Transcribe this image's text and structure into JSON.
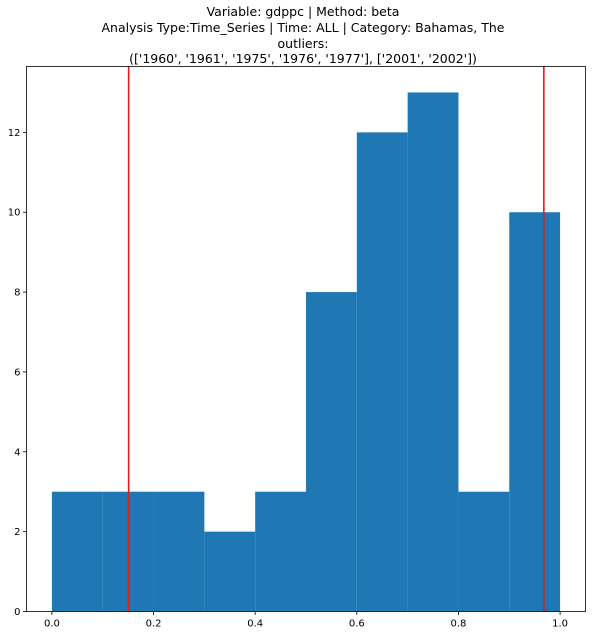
{
  "chart_data": {
    "type": "bar",
    "title_lines": [
      "Variable: gdppc | Method: beta",
      "Analysis Type:Time_Series | Time: ALL | Category: Bahamas, The",
      "outliers:",
      "(['1960', '1961', '1975', '1976', '1977'], ['2001', '2002'])"
    ],
    "xlabel": "",
    "ylabel": "",
    "bins": [
      {
        "start": 0.0,
        "end": 0.1,
        "count": 3
      },
      {
        "start": 0.1,
        "end": 0.2,
        "count": 3
      },
      {
        "start": 0.2,
        "end": 0.3,
        "count": 3
      },
      {
        "start": 0.3,
        "end": 0.4,
        "count": 2
      },
      {
        "start": 0.4,
        "end": 0.5,
        "count": 3
      },
      {
        "start": 0.5,
        "end": 0.6,
        "count": 8
      },
      {
        "start": 0.6,
        "end": 0.7,
        "count": 12
      },
      {
        "start": 0.7,
        "end": 0.8,
        "count": 13
      },
      {
        "start": 0.8,
        "end": 0.9,
        "count": 3
      },
      {
        "start": 0.9,
        "end": 1.0,
        "count": 10
      }
    ],
    "vertical_lines": [
      {
        "x": 0.151,
        "color": "#e31a1c"
      },
      {
        "x": 0.968,
        "color": "#e31a1c"
      }
    ],
    "xlim": [
      -0.05,
      1.05
    ],
    "ylim": [
      0,
      13.65
    ],
    "xticks": [
      {
        "value": 0.0,
        "label": "0.0"
      },
      {
        "value": 0.2,
        "label": "0.2"
      },
      {
        "value": 0.4,
        "label": "0.4"
      },
      {
        "value": 0.6,
        "label": "0.6"
      },
      {
        "value": 0.8,
        "label": "0.8"
      },
      {
        "value": 1.0,
        "label": "1.0"
      }
    ],
    "yticks": [
      {
        "value": 0,
        "label": "0"
      },
      {
        "value": 2,
        "label": "2"
      },
      {
        "value": 4,
        "label": "4"
      },
      {
        "value": 6,
        "label": "6"
      },
      {
        "value": 8,
        "label": "8"
      },
      {
        "value": 10,
        "label": "10"
      },
      {
        "value": 12,
        "label": "12"
      }
    ],
    "grid": false,
    "bar_color": "#1f77b4"
  }
}
